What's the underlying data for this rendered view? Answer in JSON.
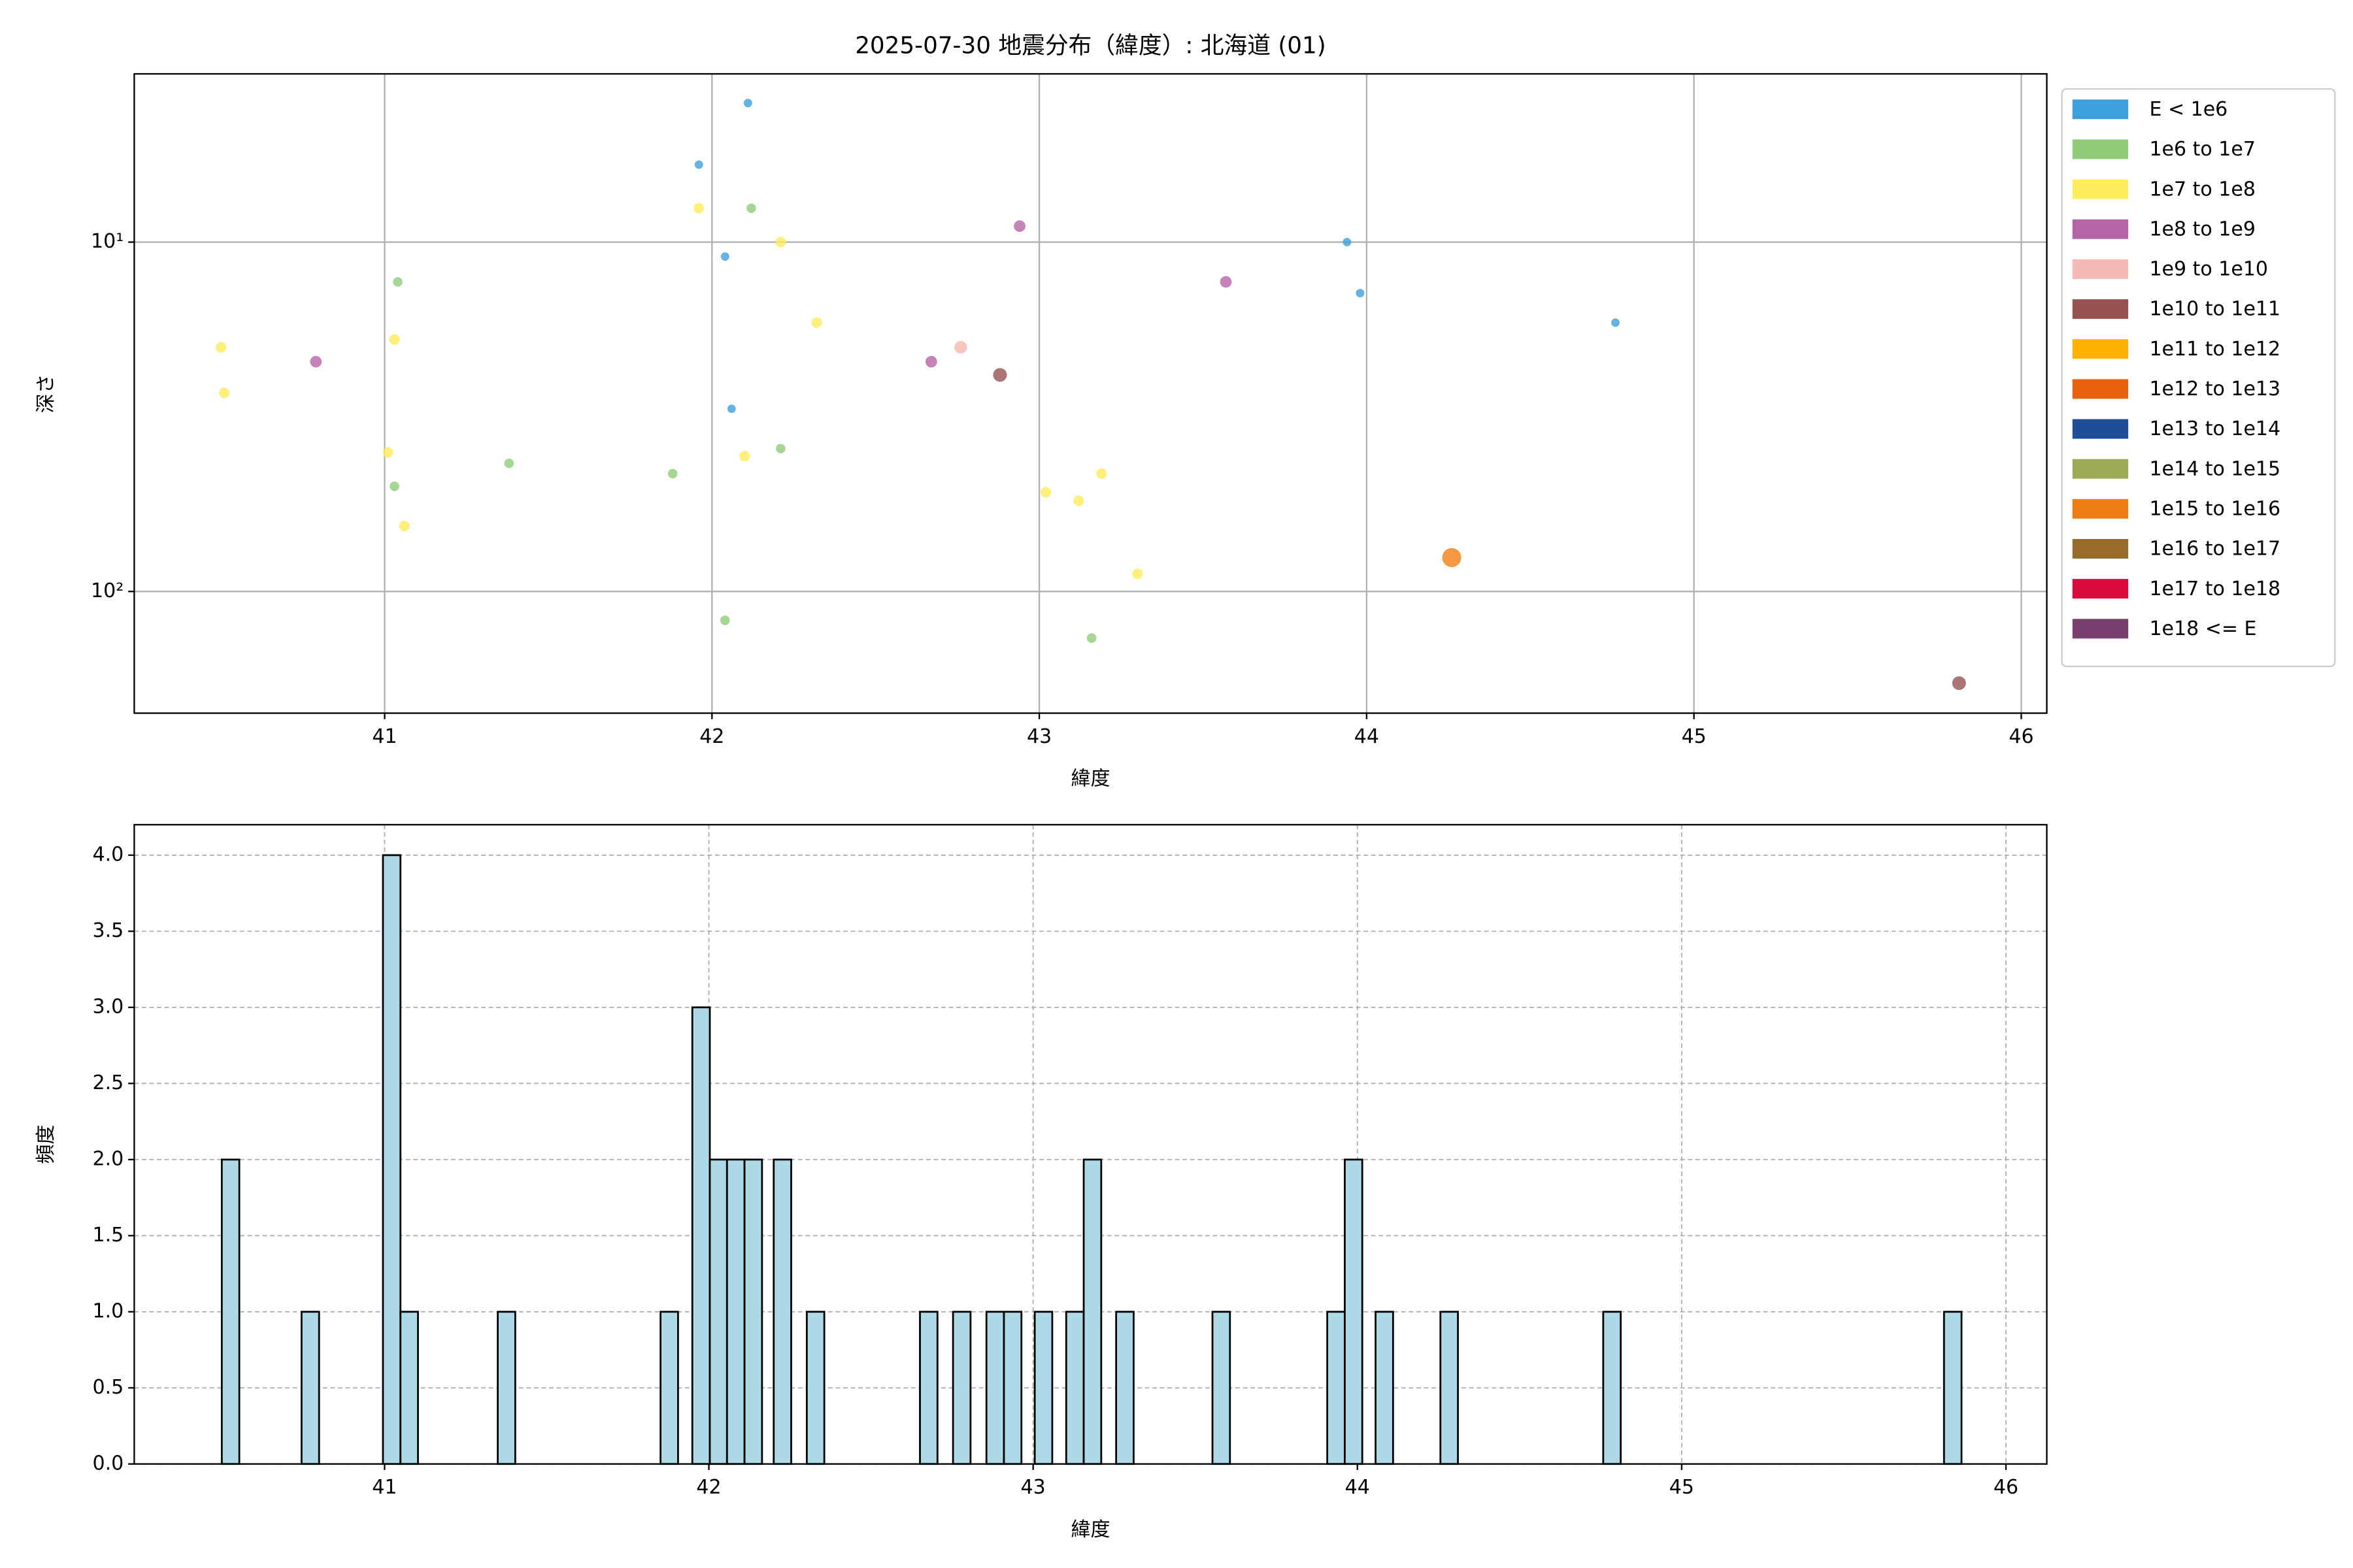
{
  "chart_data": [
    {
      "type": "scatter",
      "title": "2025-07-30 地震分布（緯度）: 北海道 (01)",
      "xlabel": "緯度",
      "ylabel": "深さ",
      "xlim": [
        40.235,
        46.078
      ],
      "xticks": [
        41,
        42,
        43,
        44,
        45,
        46
      ],
      "yscale": "log",
      "yinvert": true,
      "ylim": [
        3.3,
        223
      ],
      "yticks": [
        {
          "value": 10,
          "label": "10¹"
        },
        {
          "value": 100,
          "label": "10²"
        }
      ],
      "grid": true,
      "legend": "outside upper right",
      "series": [
        {
          "name": "E < 1e6",
          "color": "#3ca0dc",
          "x": [
            42.11,
            41.96,
            42.04,
            43.94,
            43.98,
            44.76,
            42.06
          ],
          "y": [
            4.0,
            6.0,
            11,
            10,
            14,
            17,
            30
          ]
        },
        {
          "name": "1e6 to 1e7",
          "color": "#90cc78",
          "x": [
            42.12,
            41.04,
            42.21,
            41.38,
            41.88,
            41.03,
            42.04,
            43.16
          ],
          "y": [
            8.0,
            13,
            39,
            43,
            46,
            50,
            121,
            136
          ]
        },
        {
          "name": "1e7 to 1e8",
          "color": "#ffec5c",
          "x": [
            41.96,
            42.21,
            42.32,
            40.5,
            41.03,
            40.51,
            41.01,
            42.1,
            43.19,
            43.02,
            43.12,
            41.06,
            43.3
          ],
          "y": [
            8.0,
            10,
            17,
            20,
            19,
            27,
            40,
            41,
            46,
            52,
            55,
            65,
            89
          ]
        },
        {
          "name": "1e8 to 1e9",
          "color": "#b565a7",
          "x": [
            42.94,
            43.57,
            40.79,
            42.67
          ],
          "y": [
            9.0,
            13,
            22,
            22
          ]
        },
        {
          "name": "1e9 to 1e10",
          "color": "#f4b9b2",
          "x": [
            42.76
          ],
          "y": [
            20
          ]
        },
        {
          "name": "1e10 to 1e11",
          "color": "#955251",
          "x": [
            42.88,
            45.81
          ],
          "y": [
            24,
            183
          ]
        },
        {
          "name": "1e11 to 1e12",
          "color": "#ffb300",
          "x": [],
          "y": []
        },
        {
          "name": "1e12 to 1e13",
          "color": "#e9600e",
          "x": [],
          "y": []
        },
        {
          "name": "1e13 to 1e14",
          "color": "#1f4e96",
          "x": [],
          "y": []
        },
        {
          "name": "1e14 to 1e15",
          "color": "#9baa55",
          "x": [],
          "y": []
        },
        {
          "name": "1e15 to 1e16",
          "color": "#f07f13",
          "x": [
            44.26
          ],
          "y": [
            80
          ]
        },
        {
          "name": "1e16 to 1e17",
          "color": "#966b2c",
          "x": [],
          "y": []
        },
        {
          "name": "1e17 to 1e18",
          "color": "#dc0a3c",
          "x": [],
          "y": []
        },
        {
          "name": "1e18 <= E",
          "color": "#7a3e6f",
          "x": [],
          "y": []
        }
      ]
    },
    {
      "type": "histogram",
      "xlabel": "緯度",
      "ylabel": "頻度",
      "xlim": [
        40.228,
        46.126
      ],
      "xticks": [
        41,
        42,
        43,
        44,
        45,
        46
      ],
      "ylim": [
        0,
        4.2
      ],
      "yticks": [
        {
          "value": 0,
          "label": "0.0"
        },
        {
          "value": 0.5,
          "label": "0.5"
        },
        {
          "value": 1,
          "label": "1.0"
        },
        {
          "value": 1.5,
          "label": "1.5"
        },
        {
          "value": 2,
          "label": "2.0"
        },
        {
          "value": 2.5,
          "label": "2.5"
        },
        {
          "value": 3,
          "label": "3.0"
        },
        {
          "value": 3.5,
          "label": "3.5"
        },
        {
          "value": 4,
          "label": "4.0"
        }
      ],
      "grid": true,
      "color": "#add8e6",
      "edgecolor": "#000000",
      "bins": [
        40.498,
        40.552,
        40.744,
        40.798,
        40.995,
        41.049,
        41.103,
        41.349,
        41.403,
        41.851,
        41.905,
        41.949,
        42.003,
        42.056,
        42.11,
        42.164,
        42.2,
        42.254,
        42.302,
        42.356,
        42.651,
        42.705,
        42.753,
        42.807,
        42.856,
        42.91,
        42.964,
        43.005,
        43.059,
        43.102,
        43.156,
        43.21,
        43.256,
        43.31,
        43.553,
        43.607,
        43.907,
        43.961,
        44.015,
        44.056,
        44.11,
        44.256,
        44.31,
        44.758,
        44.812,
        45.809,
        45.863
      ],
      "values": [
        2,
        0,
        1,
        0,
        4,
        1,
        0,
        1,
        0,
        1,
        0,
        3,
        2,
        2,
        2,
        0,
        2,
        0,
        1,
        0,
        1,
        0,
        1,
        0,
        1,
        1,
        0,
        1,
        0,
        1,
        2,
        0,
        1,
        0,
        1,
        0,
        1,
        2,
        0,
        1,
        0,
        1,
        0,
        1,
        0,
        1
      ]
    }
  ]
}
